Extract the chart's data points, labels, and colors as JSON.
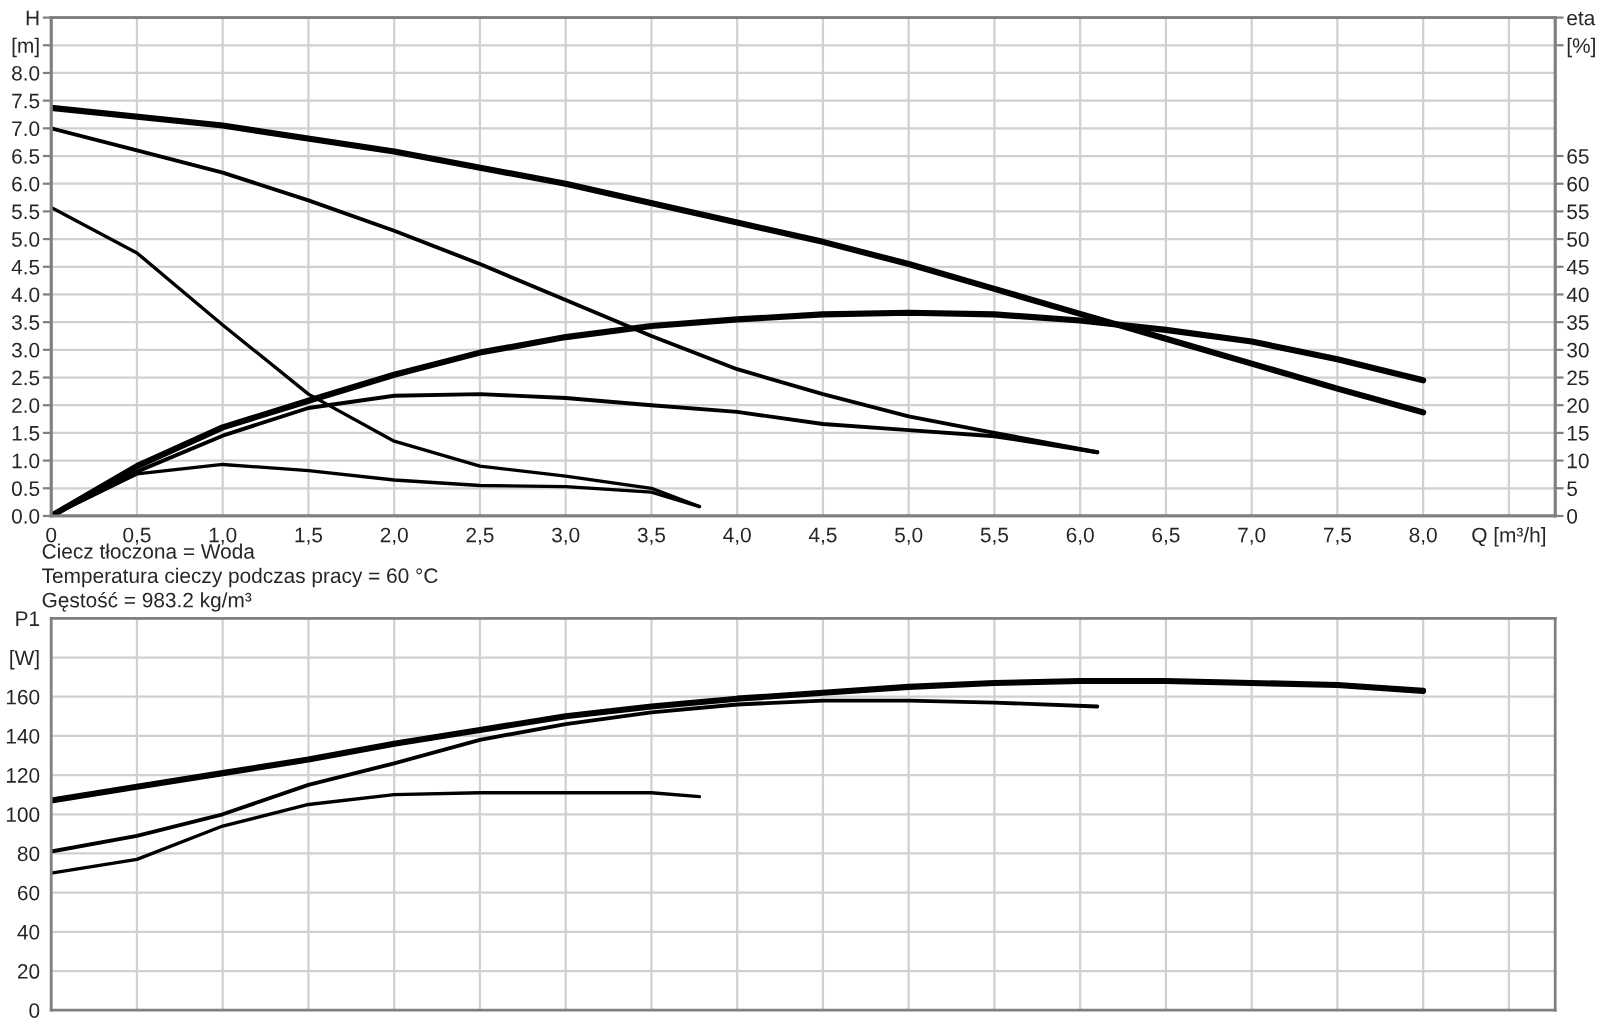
{
  "chart_data": [
    {
      "type": "line",
      "xlim": [
        0,
        8.77
      ],
      "ylim": [
        0,
        9.0
      ],
      "y2lim": [
        0,
        90
      ],
      "xticks": [
        0,
        {
          "value": 0.5,
          "label": "0,5"
        },
        {
          "value": 1,
          "label": "1,0"
        },
        {
          "value": 1.5,
          "label": "1,5"
        },
        {
          "value": 2,
          "label": "2,0"
        },
        {
          "value": 2.5,
          "label": "2,5"
        },
        {
          "value": 3,
          "label": "3,0"
        },
        {
          "value": 3.5,
          "label": "3,5"
        },
        {
          "value": 4,
          "label": "4,0"
        },
        {
          "value": 4.5,
          "label": "4,5"
        },
        {
          "value": 5,
          "label": "5,0"
        },
        {
          "value": 5.5,
          "label": "5,5"
        },
        {
          "value": 6,
          "label": "6,0"
        },
        {
          "value": 6.5,
          "label": "6,5"
        },
        {
          "value": 7,
          "label": "7,0"
        },
        {
          "value": 7.5,
          "label": "7,5"
        },
        {
          "value": 8,
          "label": "8,0"
        },
        {
          "value": 8.5,
          "label": "Q [m³/h]"
        }
      ],
      "yticks": [
        {
          "value": 0,
          "label": "0.0"
        },
        0.5,
        {
          "value": 1,
          "label": "1.0"
        },
        1.5,
        {
          "value": 2,
          "label": "2.0"
        },
        2.5,
        {
          "value": 3,
          "label": "3.0"
        },
        3.5,
        {
          "value": 4,
          "label": "4.0"
        },
        4.5,
        {
          "value": 5,
          "label": "5.0"
        },
        5.5,
        {
          "value": 6,
          "label": "6.0"
        },
        6.5,
        {
          "value": 7,
          "label": "7.0"
        },
        7.5,
        {
          "value": 8,
          "label": "8.0"
        },
        {
          "value": 8.5,
          "label": "[m]"
        },
        {
          "value": 9,
          "label": "H"
        }
      ],
      "y2ticks": [
        0,
        5,
        10,
        15,
        20,
        25,
        30,
        35,
        40,
        45,
        50,
        55,
        60,
        65,
        {
          "value": 85,
          "label": "[%]"
        },
        {
          "value": 90,
          "label": "eta"
        }
      ],
      "grid": true,
      "legend": false,
      "line_style": "solid",
      "marker": "none",
      "series": [
        {
          "color": "#000000",
          "x": [
            0,
            1,
            2,
            3,
            4,
            4.5,
            5,
            5.5,
            6,
            6.5,
            7,
            7.5,
            8
          ],
          "values": [
            7.37,
            7.05,
            6.58,
            6.0,
            5.3,
            4.95,
            4.55,
            4.1,
            3.65,
            3.2,
            2.75,
            2.3,
            1.87
          ]
        },
        {
          "color": "#000000",
          "x": [
            0,
            0.5,
            1,
            1.5,
            2,
            2.5,
            3,
            3.5,
            4,
            4.5,
            5,
            5.5,
            6.1
          ],
          "values": [
            7.0,
            6.6,
            6.2,
            5.7,
            5.15,
            4.55,
            3.9,
            3.25,
            2.65,
            2.2,
            1.8,
            1.5,
            1.15
          ]
        },
        {
          "color": "#000000",
          "x": [
            0,
            0.5,
            1,
            1.5,
            2,
            2.5,
            3,
            3.5,
            3.78
          ],
          "values": [
            5.57,
            4.75,
            3.45,
            2.2,
            1.35,
            0.9,
            0.72,
            0.5,
            0.17
          ]
        },
        {
          "color": "#000000",
          "axis": "y2",
          "x": [
            0,
            0.5,
            1,
            1.5,
            2,
            2.5,
            3,
            3.5,
            4,
            4.5,
            5,
            5.5,
            6,
            6.5,
            7,
            7.5,
            8
          ],
          "values": [
            0,
            9,
            16,
            20.8,
            25.5,
            29.5,
            32.3,
            34.3,
            35.5,
            36.4,
            36.7,
            36.4,
            35.3,
            33.6,
            31.5,
            28.3,
            24.5
          ]
        },
        {
          "color": "#000000",
          "axis": "y2",
          "x": [
            0,
            0.5,
            1,
            1.5,
            2,
            2.5,
            3,
            3.5,
            4,
            4.5,
            5,
            5.5,
            6.1
          ],
          "values": [
            0,
            8,
            14.5,
            19.5,
            21.7,
            22,
            21.3,
            20,
            18.8,
            16.6,
            15.5,
            14.4,
            11.5
          ]
        },
        {
          "color": "#000000",
          "axis": "y2",
          "x": [
            0,
            0.5,
            1,
            1.5,
            2,
            2.5,
            3,
            3.5,
            3.78
          ],
          "values": [
            0,
            7.6,
            9.3,
            8.2,
            6.5,
            5.5,
            5.3,
            4.3,
            1.7
          ]
        }
      ],
      "annotations": [
        "Ciecz tłoczona = Woda",
        "Temperatura cieczy podczas pracy = 60 °C",
        "Gęstość = 983.2 kg/m³"
      ]
    },
    {
      "type": "line",
      "xlim": [
        0,
        8.77
      ],
      "ylim": [
        0,
        200
      ],
      "tick_labels": "y",
      "xticks": [
        0,
        0.5,
        1,
        1.5,
        2,
        2.5,
        3,
        3.5,
        4,
        4.5,
        5,
        5.5,
        6,
        6.5,
        7,
        7.5,
        8,
        8.5
      ],
      "yticks": [
        0,
        20,
        40,
        60,
        80,
        100,
        120,
        140,
        160,
        {
          "value": 180,
          "label": "[W]"
        },
        {
          "value": 200,
          "label": "P1"
        }
      ],
      "grid": true,
      "legend": false,
      "line_style": "solid",
      "marker": "none",
      "series": [
        {
          "color": "#000000",
          "x": [
            0,
            0.5,
            1,
            1.5,
            2,
            2.5,
            3,
            3.5,
            4,
            4.5,
            5,
            5.5,
            6,
            6.5,
            7,
            7.5,
            8
          ],
          "values": [
            107,
            114,
            121,
            128,
            136,
            143,
            150,
            155,
            159,
            162,
            165,
            167,
            168,
            168,
            167,
            166,
            163
          ]
        },
        {
          "color": "#000000",
          "x": [
            0,
            0.5,
            1,
            1.5,
            2,
            2.5,
            3,
            3.5,
            4,
            4.5,
            5,
            5.5,
            6.1
          ],
          "values": [
            81,
            89,
            100,
            115,
            126,
            138,
            146,
            152,
            156,
            158,
            158,
            157,
            155
          ]
        },
        {
          "color": "#000000",
          "x": [
            0,
            0.5,
            1,
            1.5,
            2,
            2.5,
            3,
            3.5,
            3.78
          ],
          "values": [
            70,
            77,
            94,
            105,
            110,
            111,
            111,
            111,
            109
          ]
        }
      ]
    }
  ]
}
